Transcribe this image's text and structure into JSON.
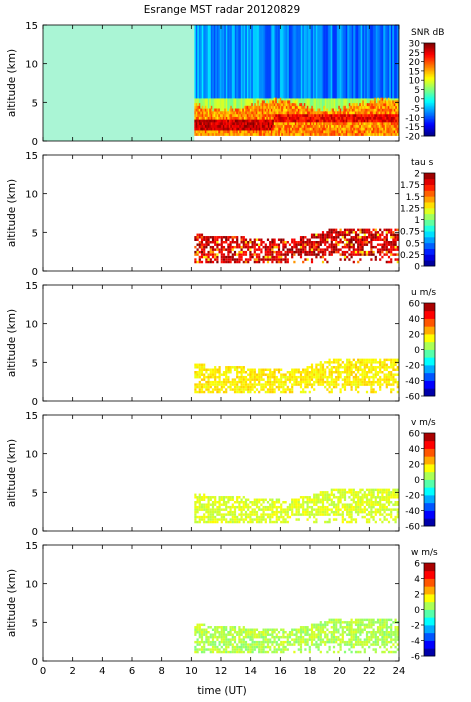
{
  "chart_data": {
    "type": "heatmap",
    "title": "Esrange MST radar 20120829",
    "xlabel": "time (UT)",
    "x_ticks": [
      "0",
      "2",
      "4",
      "6",
      "8",
      "10",
      "12",
      "14",
      "16",
      "18",
      "20",
      "22",
      "24"
    ],
    "xlim": [
      0,
      24
    ],
    "panels": [
      {
        "ylabel": "altitude (km)",
        "ylim": [
          0,
          15
        ],
        "y_ticks": [
          "0",
          "5",
          "10",
          "15"
        ],
        "colorbar_label": "SNR dB",
        "colorbar_ticks": [
          "30",
          "25",
          "20",
          "15",
          "10",
          "5",
          "0",
          "-5",
          "-10",
          "-15",
          "-20"
        ],
        "clim": [
          -20,
          30
        ],
        "colormap": "jet",
        "no_data_fill": "#aaf5d5",
        "no_data_until_hour": 10.2,
        "data_start_hour": 10.2
      },
      {
        "ylabel": "altitude (km)",
        "ylim": [
          0,
          15
        ],
        "y_ticks": [
          "0",
          "5",
          "10",
          "15"
        ],
        "colorbar_label": "tau s",
        "colorbar_ticks": [
          "2",
          "1.75",
          "1.5",
          "1.25",
          "1",
          "0.75",
          "0.5",
          "0.25",
          "0"
        ],
        "clim": [
          0,
          2
        ],
        "colormap": "jet-discrete",
        "data_start_hour": 10.2
      },
      {
        "ylabel": "altitude (km)",
        "ylim": [
          0,
          15
        ],
        "y_ticks": [
          "0",
          "5",
          "10",
          "15"
        ],
        "colorbar_label": "u m/s",
        "colorbar_ticks": [
          "60",
          "40",
          "20",
          "0",
          "-20",
          "-40",
          "-60"
        ],
        "clim": [
          -60,
          60
        ],
        "colormap": "jet-discrete",
        "data_start_hour": 10.2
      },
      {
        "ylabel": "altitude (km)",
        "ylim": [
          0,
          15
        ],
        "y_ticks": [
          "0",
          "5",
          "10",
          "15"
        ],
        "colorbar_label": "v m/s",
        "colorbar_ticks": [
          "60",
          "40",
          "20",
          "0",
          "-20",
          "-40",
          "-60"
        ],
        "clim": [
          -60,
          60
        ],
        "colormap": "jet-discrete",
        "data_start_hour": 10.2
      },
      {
        "ylabel": "altitude (km)",
        "ylim": [
          0,
          15
        ],
        "y_ticks": [
          "0",
          "5",
          "10",
          "15"
        ],
        "colorbar_label": "w m/s",
        "colorbar_ticks": [
          "6",
          "4",
          "2",
          "0",
          "-2",
          "-4",
          "-6"
        ],
        "clim": [
          -6,
          6
        ],
        "colormap": "jet-discrete",
        "data_start_hour": 10.2
      }
    ]
  }
}
